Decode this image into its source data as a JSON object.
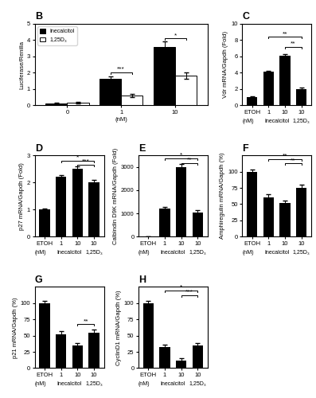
{
  "chart_data": [
    {
      "type": "bar",
      "title": "B",
      "categories": [
        "0",
        "1",
        "10"
      ],
      "xlabel": "(nM)",
      "ylabel": "Luciferase/Renilla",
      "series": [
        {
          "name": "Inecalcitol",
          "color": "#000000",
          "values": [
            0.12,
            1.6,
            3.6
          ],
          "errors": [
            0.05,
            0.15,
            0.3
          ]
        },
        {
          "name": "1,25D₃",
          "color": "#ffffff",
          "values": [
            0.15,
            0.6,
            1.8
          ],
          "errors": [
            0.05,
            0.1,
            0.2
          ]
        }
      ],
      "ylim": [
        0,
        5
      ],
      "yticks": [
        0,
        1,
        2,
        3,
        4,
        5
      ],
      "legend": "upper left",
      "annotations": [
        {
          "text": "***",
          "category": 1,
          "y": 1.9
        },
        {
          "text": "*",
          "category": 2,
          "y": 4.0
        }
      ]
    },
    {
      "type": "bar",
      "title": "C",
      "categories": [
        "ETOH",
        "1",
        "10",
        "10"
      ],
      "xlabel": "(nM)",
      "category_groups": [
        {
          "label": "Inecalcitol",
          "categories": [
            1,
            2
          ]
        },
        {
          "label": "1,25D₃",
          "categories": [
            3
          ]
        }
      ],
      "values": [
        1.0,
        4.1,
        6.1,
        2.0
      ],
      "errors": [
        0.08,
        0.12,
        0.18,
        0.12
      ],
      "color": "#000000",
      "ylabel": "Vdr mRNA/Gapdh (Fold)",
      "ylim": [
        0,
        10
      ],
      "yticks": [
        0,
        2,
        4,
        6,
        8,
        10
      ],
      "annotations": [
        {
          "text": "**",
          "from": 1,
          "to": 3,
          "y": 8.2
        },
        {
          "text": "**",
          "from": 2,
          "to": 3,
          "y": 7.0
        }
      ]
    },
    {
      "type": "bar",
      "title": "D",
      "categories": [
        "ETOH",
        "1",
        "10",
        "10"
      ],
      "xlabel": "(nM)",
      "category_groups": [
        {
          "label": "Inecalcitol",
          "categories": [
            1,
            2
          ]
        },
        {
          "label": "1,25D₃",
          "categories": [
            3
          ]
        }
      ],
      "values": [
        1.0,
        2.2,
        2.5,
        2.0
      ],
      "errors": [
        0.05,
        0.08,
        0.1,
        0.1
      ],
      "color": "#000000",
      "ylabel": "p27 mRNA/Gapdh (Fold)",
      "ylim": [
        0,
        3
      ],
      "yticks": [
        0,
        1,
        2,
        3
      ],
      "annotations": [
        {
          "text": "*",
          "from": 1,
          "to": 3,
          "y": 2.75
        },
        {
          "text": "***",
          "from": 2,
          "to": 3,
          "y": 2.6
        }
      ]
    },
    {
      "type": "bar",
      "title": "E",
      "categories": [
        "ETOH",
        "1",
        "10",
        "10"
      ],
      "xlabel": "(nM)",
      "category_groups": [
        {
          "label": "Inecalcitol",
          "categories": [
            1,
            2
          ]
        },
        {
          "label": "1,25D₃",
          "categories": [
            3
          ]
        }
      ],
      "values": [
        0,
        1200,
        3000,
        1050
      ],
      "errors": [
        0,
        80,
        120,
        80
      ],
      "color": "#000000",
      "ylabel": "Calbindin D9K mRNA/Gapdh (Fold)",
      "ylim": [
        0,
        3500
      ],
      "yticks": [
        0,
        1000,
        2000,
        3000
      ],
      "annotations": [
        {
          "text": "*",
          "from": 1,
          "to": 3,
          "y": 3300
        },
        {
          "text": "**",
          "from": 2,
          "to": 3,
          "y": 3100
        }
      ]
    },
    {
      "type": "bar",
      "title": "F",
      "categories": [
        "ETOH",
        "1",
        "10",
        "10"
      ],
      "xlabel": "(nM)",
      "category_groups": [
        {
          "label": "Inecalcitol",
          "categories": [
            1,
            2
          ]
        },
        {
          "label": "1,25D₃",
          "categories": [
            3
          ]
        }
      ],
      "values": [
        100,
        60,
        52,
        75
      ],
      "errors": [
        3,
        5,
        4,
        5
      ],
      "color": "#000000",
      "ylabel": "Amphiregulin mRNA/Gapdh (%)",
      "ylim": [
        0,
        125
      ],
      "yticks": [
        0,
        25,
        50,
        75,
        100
      ],
      "annotations": [
        {
          "text": "**",
          "from": 1,
          "to": 3,
          "y": 117
        },
        {
          "text": "**",
          "from": 2,
          "to": 3,
          "y": 110
        }
      ]
    },
    {
      "type": "bar",
      "title": "G",
      "categories": [
        "ETOH",
        "1",
        "10",
        "10"
      ],
      "xlabel": "(nM)",
      "category_groups": [
        {
          "label": "Inecalcitol",
          "categories": [
            1,
            2
          ]
        },
        {
          "label": "1,25D₃",
          "categories": [
            3
          ]
        }
      ],
      "values": [
        100,
        52,
        35,
        55
      ],
      "errors": [
        3,
        5,
        4,
        5
      ],
      "color": "#000000",
      "ylabel": "p21 mRNA/Gapdh (%)",
      "ylim": [
        0,
        125
      ],
      "yticks": [
        0,
        25,
        50,
        75,
        100
      ],
      "annotations": [
        {
          "text": "**",
          "from": 2,
          "to": 3,
          "y": 65
        }
      ]
    },
    {
      "type": "bar",
      "title": "H",
      "categories": [
        "ETOH",
        "1",
        "10",
        "10"
      ],
      "xlabel": "(nM)",
      "category_groups": [
        {
          "label": "Inecalcitol",
          "categories": [
            1,
            2
          ]
        },
        {
          "label": "1,25D₃",
          "categories": [
            3
          ]
        }
      ],
      "values": [
        100,
        32,
        12,
        35
      ],
      "errors": [
        4,
        4,
        3,
        4
      ],
      "color": "#000000",
      "ylabel": "CyclinD1 mRNA/Gapdh (%)",
      "ylim": [
        0,
        125
      ],
      "yticks": [
        0,
        25,
        50,
        75,
        100
      ],
      "annotations": [
        {
          "text": "*",
          "from": 1,
          "to": 3,
          "y": 117
        },
        {
          "text": "***",
          "from": 2,
          "to": 3,
          "y": 110
        }
      ]
    }
  ]
}
